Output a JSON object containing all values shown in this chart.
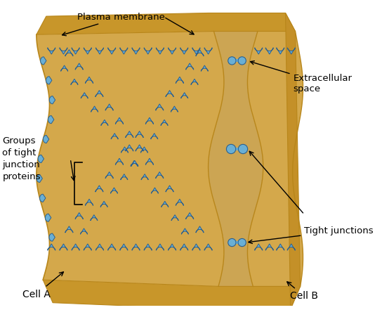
{
  "bg_color": "#ffffff",
  "cell_color_main": "#D4A84B",
  "cell_color_dark": "#B8861A",
  "cell_color_side": "#C49028",
  "cell_color_top": "#C8962A",
  "extracell_color": "#C49535",
  "protein_color": "#6AAFD4",
  "protein_edge_color": "#2A6090",
  "labels": {
    "cell_a": "Cell A",
    "cell_b": "Cell B",
    "tight_junctions": "Tight junctions",
    "groups": "Groups\nof tight\njunction\nproteins",
    "plasma_membrane": "Plasma membrane",
    "extracellular": "Extracellular\nspace"
  },
  "figsize": [
    5.44,
    4.51
  ],
  "dpi": 100
}
